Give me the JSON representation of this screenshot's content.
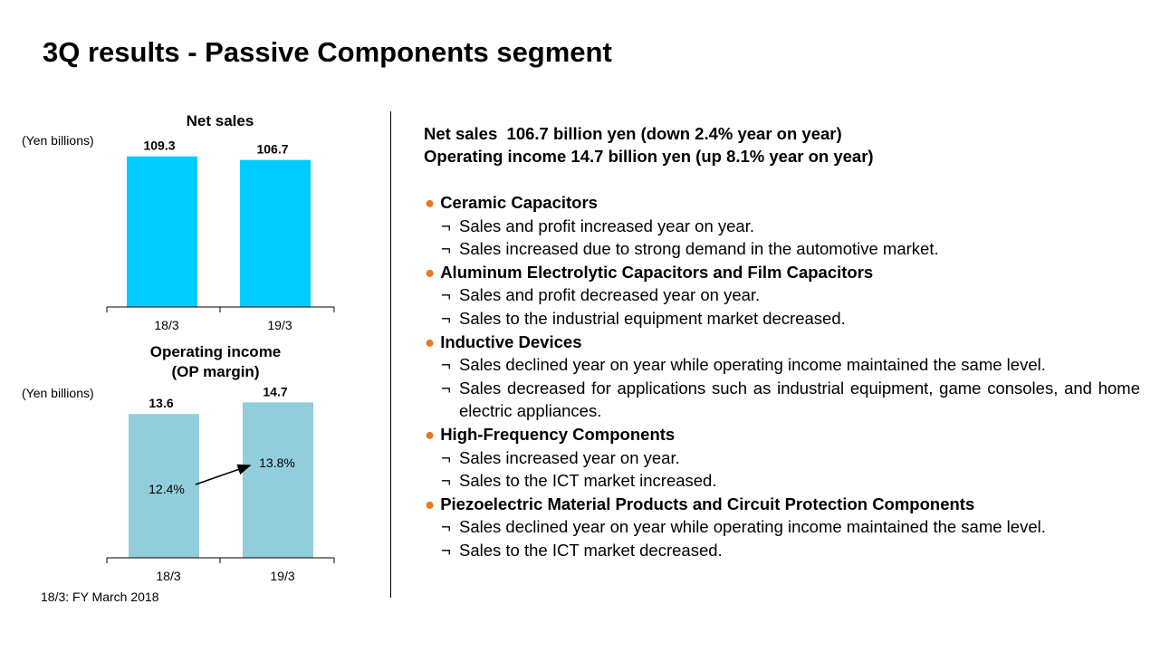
{
  "title": "3Q results - Passive Components segment",
  "footnote": "18/3: FY March 2018",
  "colors": {
    "net_sales_bar": "#00ccff",
    "op_income_bar": "#92cddc",
    "bullet": "#e87722"
  },
  "summary": {
    "line1": "Net sales  106.7 billion yen (down 2.4% year on year)",
    "line2": "Operating income 14.7 billion yen (up 8.1% year on year)"
  },
  "segments": [
    {
      "heading": "Ceramic Capacitors",
      "bullet_icon": "orange-dot-icon",
      "points": [
        "Sales and profit increased year on year.",
        "Sales increased due to strong demand in the automotive market."
      ]
    },
    {
      "heading": "Aluminum Electrolytic Capacitors and Film Capacitors",
      "bullet_icon": "orange-dot-icon",
      "points": [
        "Sales and profit decreased year on year.",
        "Sales to the industrial equipment market decreased."
      ]
    },
    {
      "heading": "Inductive Devices",
      "bullet_icon": "orange-dot-icon",
      "points": [
        "Sales declined year on year while operating income maintained the same level.",
        "Sales decreased for applications such as industrial equipment, game consoles, and home electric appliances."
      ]
    },
    {
      "heading": "High-Frequency Components",
      "bullet_icon": "orange-dot-icon",
      "points": [
        "Sales increased year on year.",
        "Sales to the ICT market increased."
      ]
    },
    {
      "heading": "Piezoelectric Material Products and Circuit Protection Components",
      "bullet_icon": "orange-dot-icon",
      "points": [
        "Sales declined year on year while operating income maintained the same level.",
        "Sales to the ICT market decreased."
      ]
    }
  ],
  "sub_bullet_mark": "¬",
  "bullet_mark": "●",
  "chart_data": [
    {
      "type": "bar",
      "title": "Net sales",
      "unit_label": "(Yen billions)",
      "categories": [
        "18/3",
        "19/3"
      ],
      "values": [
        109.3,
        106.7
      ],
      "value_labels": [
        "109.3",
        "106.7"
      ],
      "ylim": [
        0,
        115
      ],
      "grid": false,
      "color": "#00ccff"
    },
    {
      "type": "bar",
      "title": "Operating income",
      "subtitle": "(OP margin)",
      "unit_label": "(Yen billions)",
      "categories": [
        "18/3",
        "19/3"
      ],
      "values": [
        13.6,
        14.7
      ],
      "value_labels": [
        "13.6",
        "14.7"
      ],
      "margins": [
        12.4,
        13.8
      ],
      "margin_labels": [
        "12.4%",
        "13.8%"
      ],
      "ylim": [
        0,
        15.5
      ],
      "grid": false,
      "color": "#92cddc"
    }
  ]
}
